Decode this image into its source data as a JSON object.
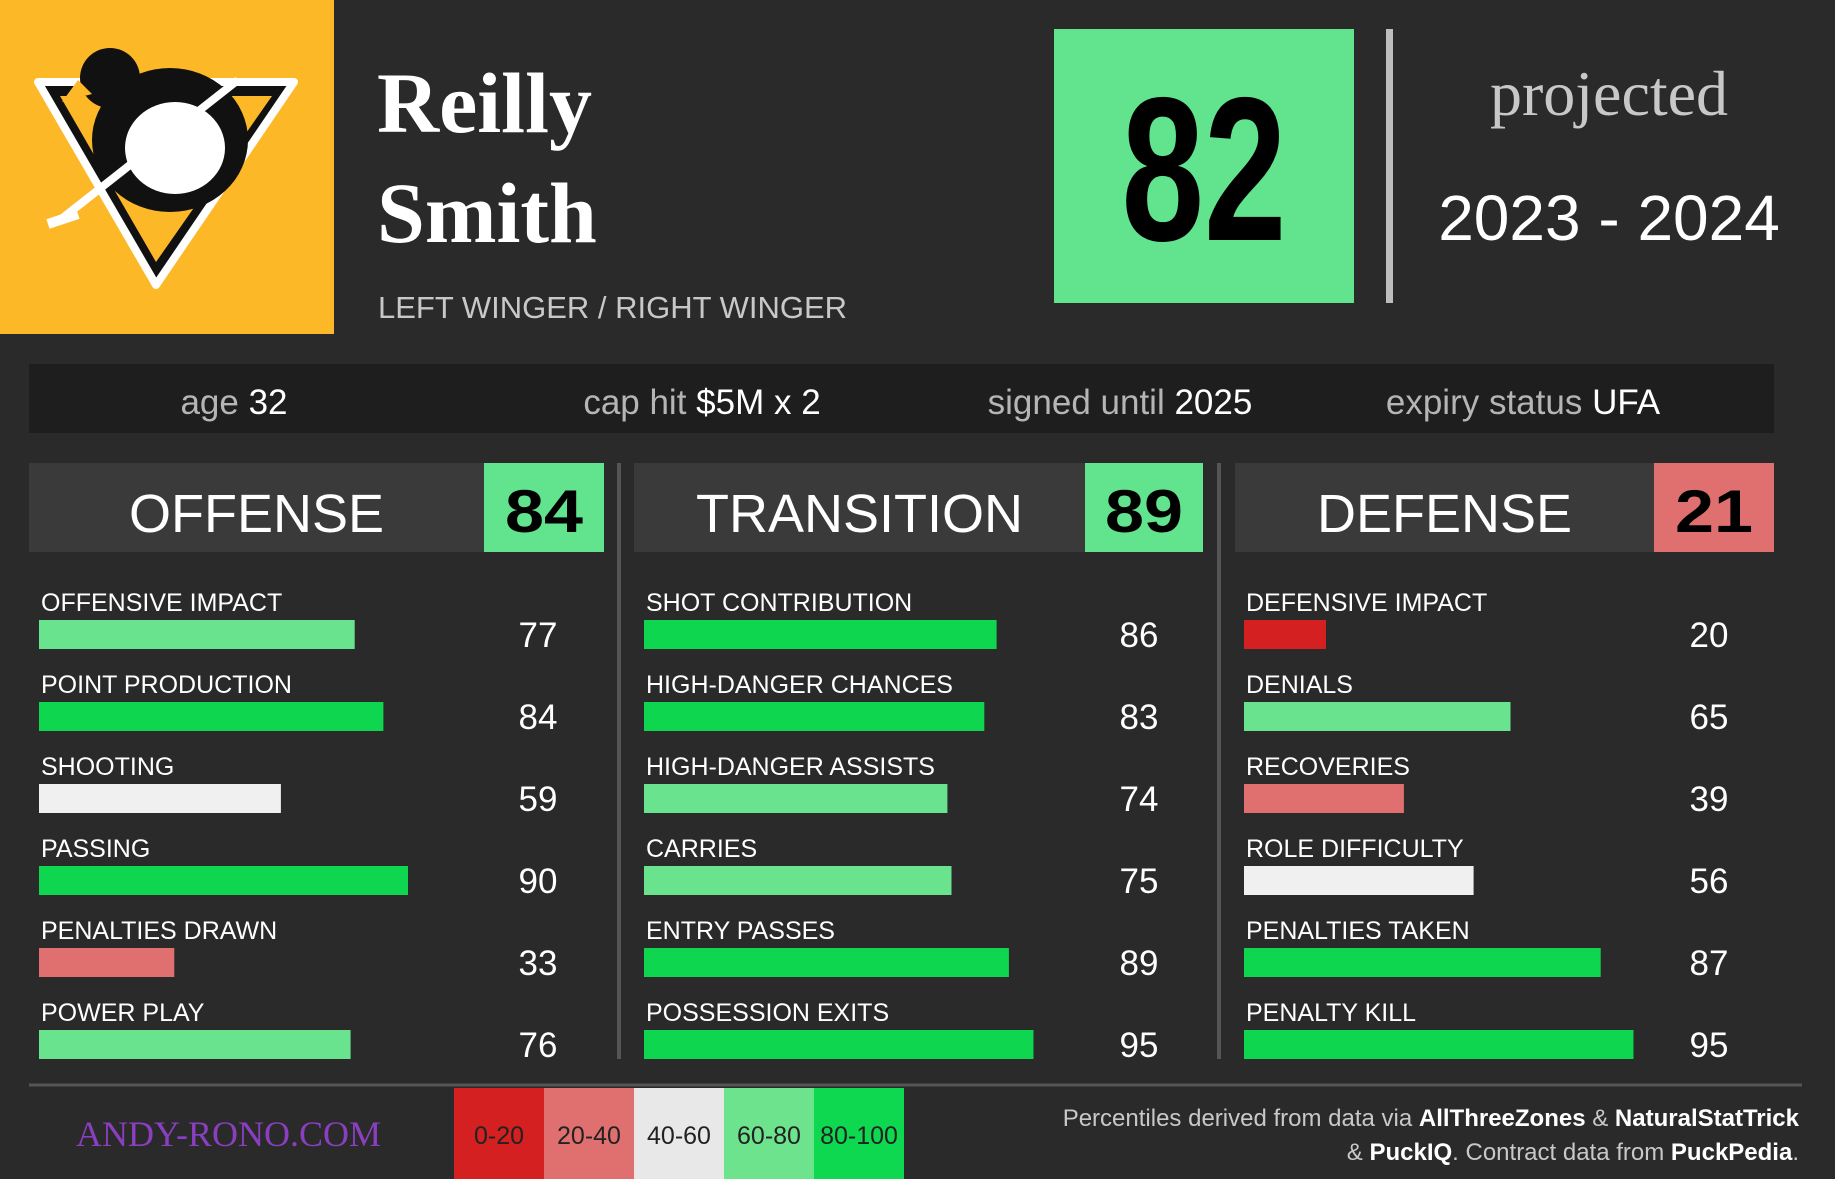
{
  "player": {
    "first_name": "Reilly",
    "last_name": "Smith",
    "position": "LEFT WINGER / RIGHT WINGER"
  },
  "overall": {
    "score": 82,
    "color": "#62e38e"
  },
  "projection": {
    "label": "projected",
    "season": "2023 - 2024"
  },
  "info": [
    {
      "label": "age",
      "value": "32"
    },
    {
      "label": "cap hit",
      "value": "$5M x 2"
    },
    {
      "label": "signed until",
      "value": "2025"
    },
    {
      "label": "expiry status",
      "value": "UFA"
    }
  ],
  "sections": [
    {
      "name": "OFFENSE",
      "score": 84,
      "color": "#62e38e",
      "metrics": [
        {
          "name": "OFFENSIVE IMPACT",
          "value": 77,
          "color": "#6ae38e"
        },
        {
          "name": "POINT PRODUCTION",
          "value": 84,
          "color": "#0fd64f"
        },
        {
          "name": "SHOOTING",
          "value": 59,
          "color": "#f0f0f0"
        },
        {
          "name": "PASSING",
          "value": 90,
          "color": "#0fd64f"
        },
        {
          "name": "PENALTIES DRAWN",
          "value": 33,
          "color": "#e07070"
        },
        {
          "name": "POWER PLAY",
          "value": 76,
          "color": "#6ae38e"
        }
      ]
    },
    {
      "name": "TRANSITION",
      "score": 89,
      "color": "#62e38e",
      "metrics": [
        {
          "name": "SHOT CONTRIBUTION",
          "value": 86,
          "color": "#0fd64f"
        },
        {
          "name": "HIGH-DANGER CHANCES",
          "value": 83,
          "color": "#0fd64f"
        },
        {
          "name": "HIGH-DANGER ASSISTS",
          "value": 74,
          "color": "#6ae38e"
        },
        {
          "name": "CARRIES",
          "value": 75,
          "color": "#6ae38e"
        },
        {
          "name": "ENTRY PASSES",
          "value": 89,
          "color": "#0fd64f"
        },
        {
          "name": "POSSESSION EXITS",
          "value": 95,
          "color": "#0fd64f"
        }
      ]
    },
    {
      "name": "DEFENSE",
      "score": 21,
      "color": "#e07070",
      "metrics": [
        {
          "name": "DEFENSIVE IMPACT",
          "value": 20,
          "color": "#d42020"
        },
        {
          "name": "DENIALS",
          "value": 65,
          "color": "#6ae38e"
        },
        {
          "name": "RECOVERIES",
          "value": 39,
          "color": "#e07070"
        },
        {
          "name": "ROLE DIFFICULTY",
          "value": 56,
          "color": "#f0f0f0"
        },
        {
          "name": "PENALTIES TAKEN",
          "value": 87,
          "color": "#0fd64f"
        },
        {
          "name": "PENALTY KILL",
          "value": 95,
          "color": "#0fd64f"
        }
      ]
    }
  ],
  "legend": [
    {
      "label": "0-20",
      "color": "#d42020"
    },
    {
      "label": "20-40",
      "color": "#e07070"
    },
    {
      "label": "40-60",
      "color": "#e8e8e8"
    },
    {
      "label": "60-80",
      "color": "#6ee38e"
    },
    {
      "label": "80-100",
      "color": "#0dd84f"
    }
  ],
  "footer": {
    "site": "ANDY-RONO.COM",
    "credits": [
      [
        {
          "text": "Percentiles derived from data via ",
          "bold": false
        },
        {
          "text": "AllThreeZones",
          "bold": true
        },
        {
          "text": " & ",
          "bold": false
        },
        {
          "text": "NaturalStatTrick",
          "bold": true
        }
      ],
      [
        {
          "text": "& ",
          "bold": false
        },
        {
          "text": "PuckIQ",
          "bold": true
        },
        {
          "text": ". Contract data from ",
          "bold": false
        },
        {
          "text": "PuckPedia",
          "bold": true
        },
        {
          "text": ".",
          "bold": false
        }
      ]
    ]
  }
}
